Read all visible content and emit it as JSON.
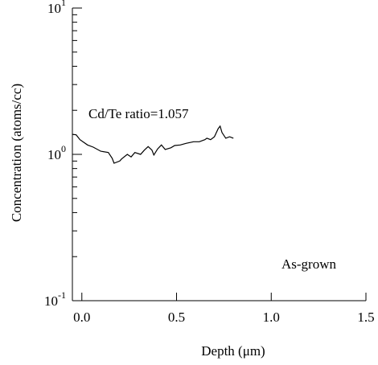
{
  "chart_data": {
    "type": "line",
    "xlabel": "Depth (μm)",
    "ylabel": "Concentration (atoms/cc)",
    "annotations": [
      "Cd/Te ratio=1.057",
      "As-grown"
    ],
    "x": [
      -0.05,
      -0.03,
      -0.01,
      0.03,
      0.06,
      0.1,
      0.14,
      0.16,
      0.17,
      0.2,
      0.21,
      0.24,
      0.26,
      0.28,
      0.31,
      0.33,
      0.35,
      0.37,
      0.38,
      0.4,
      0.42,
      0.44,
      0.47,
      0.49,
      0.52,
      0.55,
      0.59,
      0.62,
      0.65,
      0.66,
      0.68,
      0.7,
      0.72,
      0.73,
      0.74,
      0.76,
      0.78,
      0.8
    ],
    "values": [
      1.37,
      1.36,
      1.26,
      1.16,
      1.12,
      1.05,
      1.03,
      0.94,
      0.87,
      0.9,
      0.93,
      1.0,
      0.96,
      1.03,
      1.0,
      1.07,
      1.13,
      1.07,
      0.99,
      1.09,
      1.16,
      1.08,
      1.11,
      1.15,
      1.16,
      1.19,
      1.22,
      1.22,
      1.26,
      1.29,
      1.26,
      1.32,
      1.5,
      1.56,
      1.41,
      1.29,
      1.32,
      1.29
    ],
    "color": "#000000",
    "xlim": [
      -0.05,
      1.5
    ],
    "xticks": [
      {
        "value": 0,
        "label": "0.0"
      },
      0.5,
      {
        "value": 1,
        "label": "1.0"
      },
      1.5
    ],
    "ylim": [
      0.1,
      10
    ],
    "yscale": "log",
    "minor_ticks": true,
    "yticks": [
      {
        "value": 0.1,
        "label": "10",
        "power": "-1"
      },
      {
        "value": 1,
        "label": "10",
        "power": "0"
      },
      {
        "value": 10,
        "label": "10",
        "power": "1"
      }
    ]
  }
}
